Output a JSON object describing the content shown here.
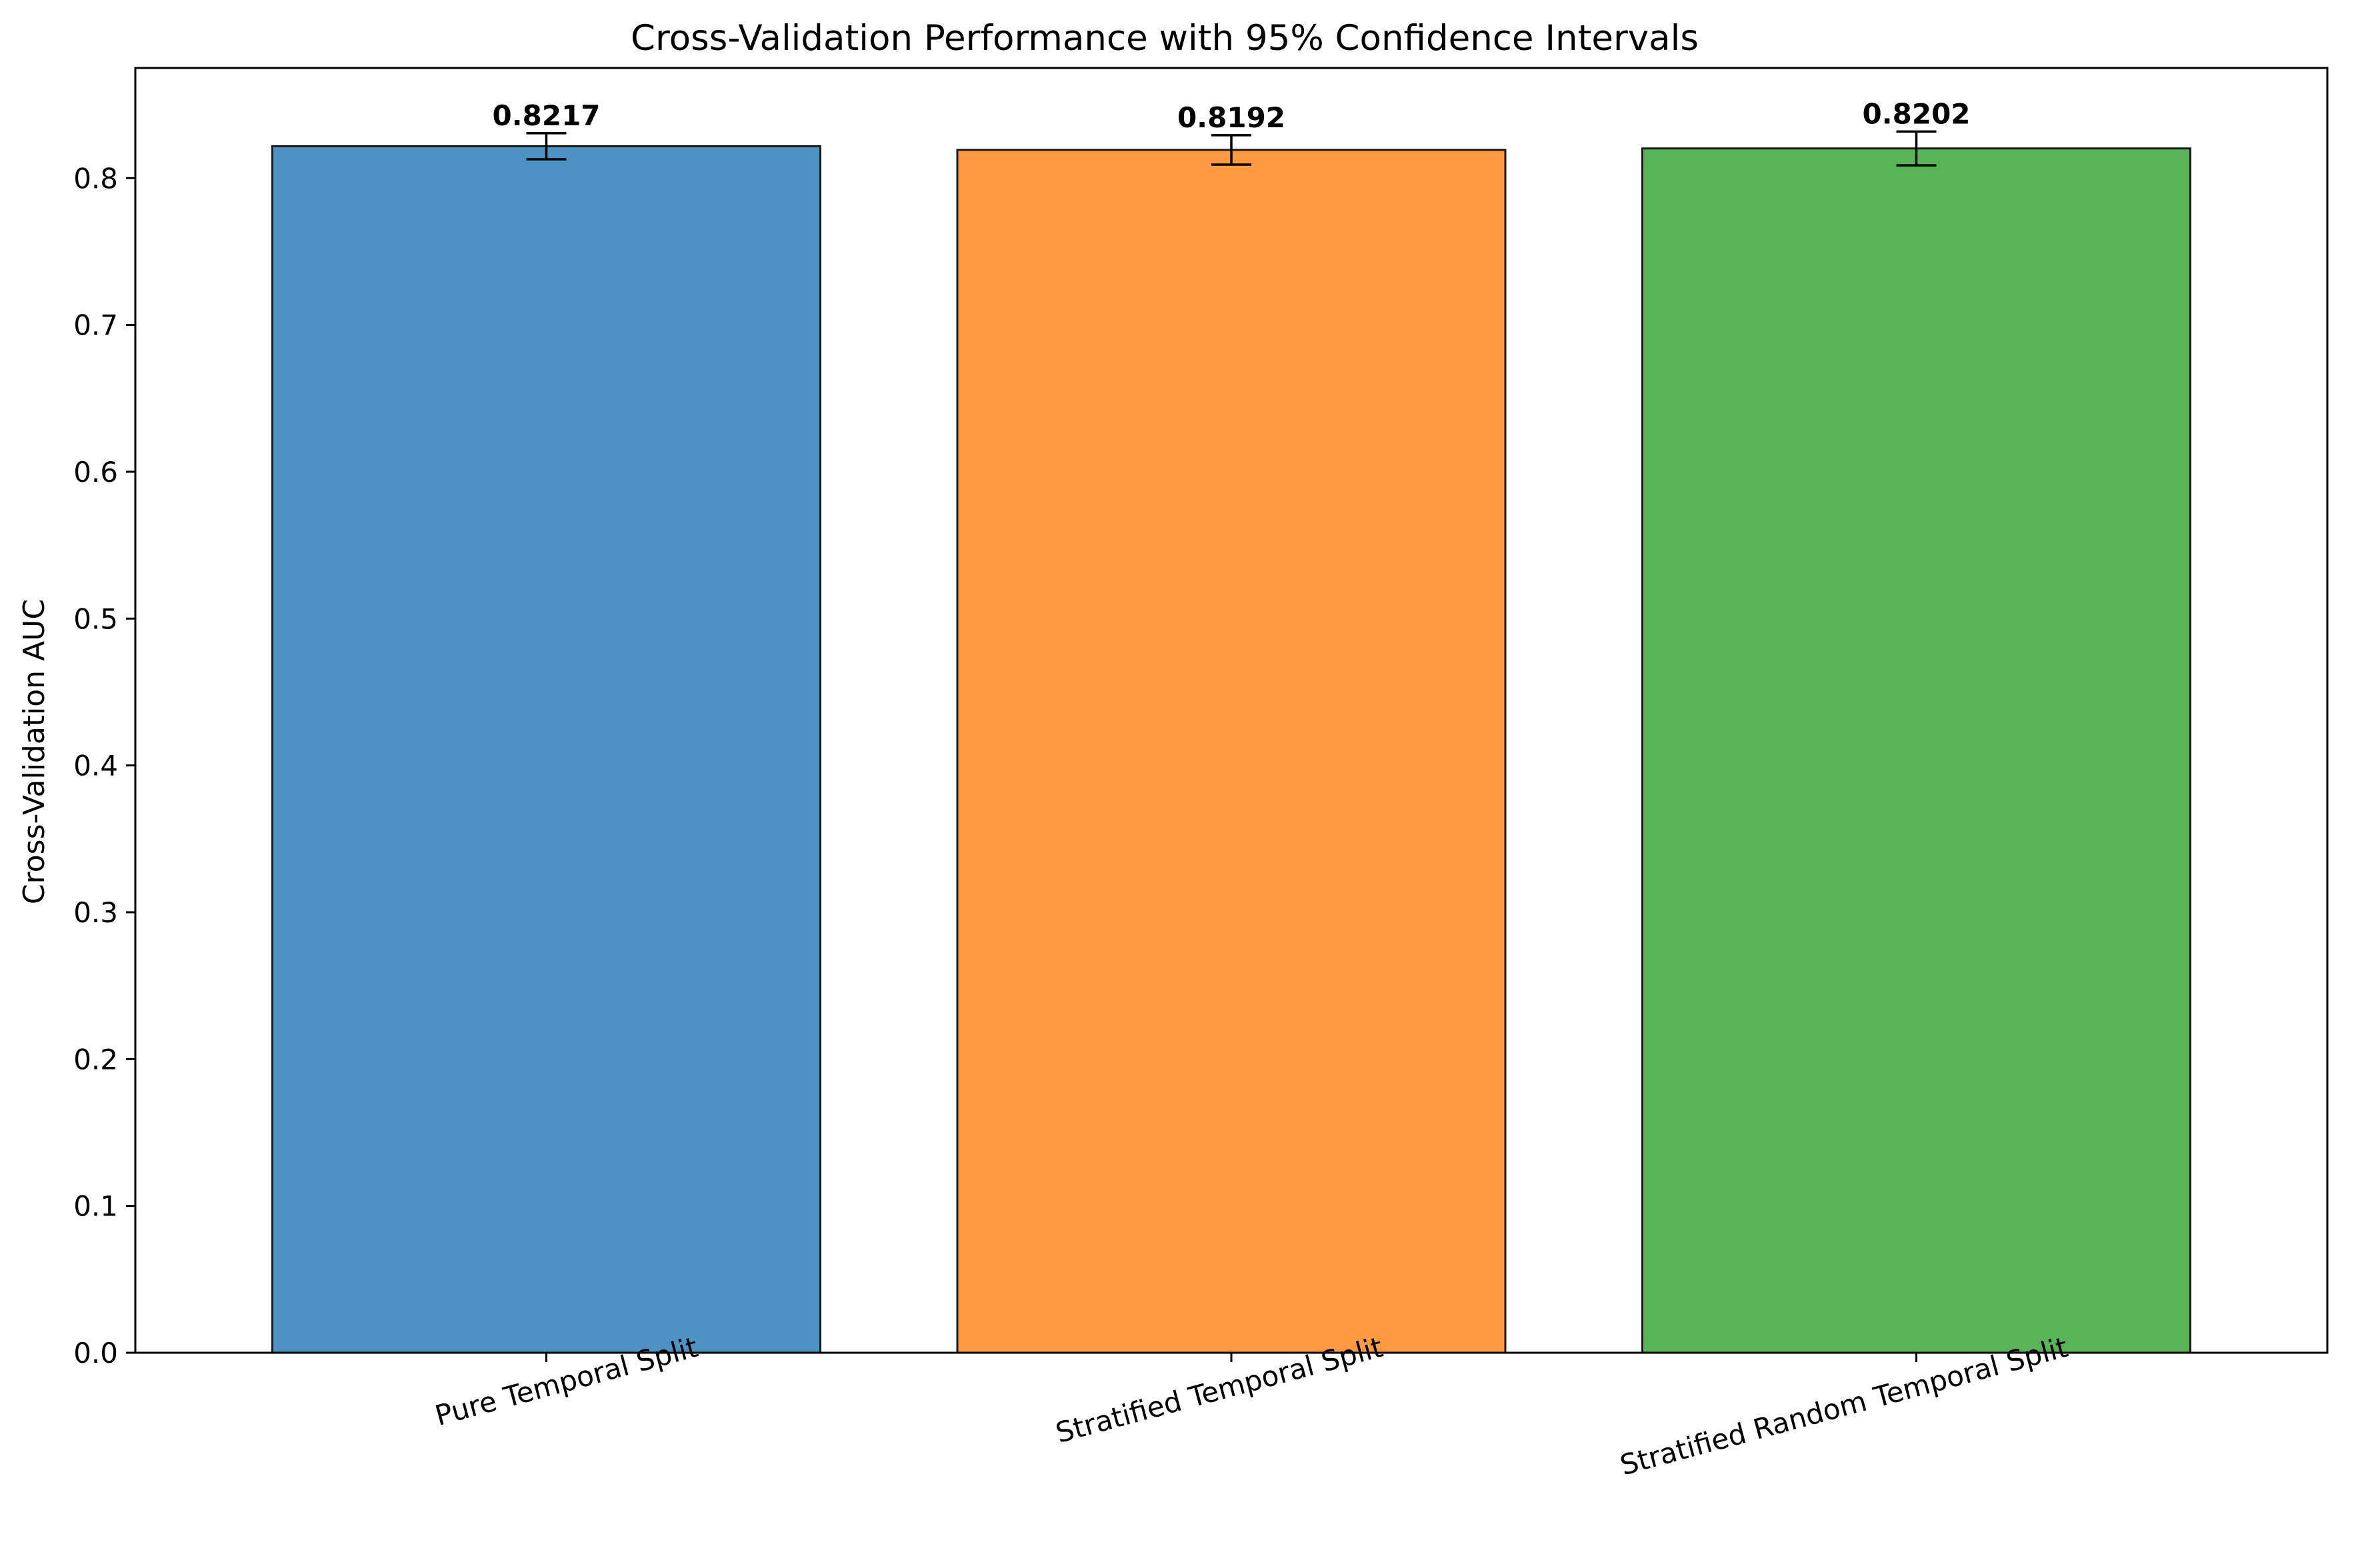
{
  "chart_data": {
    "type": "bar",
    "title": "Cross-Validation Performance with 95% Confidence Intervals",
    "xlabel": "",
    "ylabel": "Cross-Validation AUC",
    "ylim": [
      0,
      0.875
    ],
    "yticks": [
      0.0,
      0.1,
      0.2,
      0.3,
      0.4,
      0.5,
      0.6,
      0.7,
      0.8
    ],
    "ytick_labels": [
      "0.0",
      "0.1",
      "0.2",
      "0.3",
      "0.4",
      "0.5",
      "0.6",
      "0.7",
      "0.8"
    ],
    "categories": [
      "Pure Temporal Split",
      "Stratified Temporal Split",
      "Stratified Random Temporal Split"
    ],
    "values": [
      0.8217,
      0.8192,
      0.8202
    ],
    "value_labels": [
      "0.8217",
      "0.8192",
      "0.8202"
    ],
    "ci_lower": [
      0.8128,
      0.8092,
      0.8087
    ],
    "ci_upper": [
      0.8306,
      0.8292,
      0.8317
    ],
    "colors": [
      "#4c92c3",
      "#ff9a40",
      "#57b457"
    ],
    "edge_color": "#1a1a1a",
    "grid": false,
    "legend": "none"
  }
}
